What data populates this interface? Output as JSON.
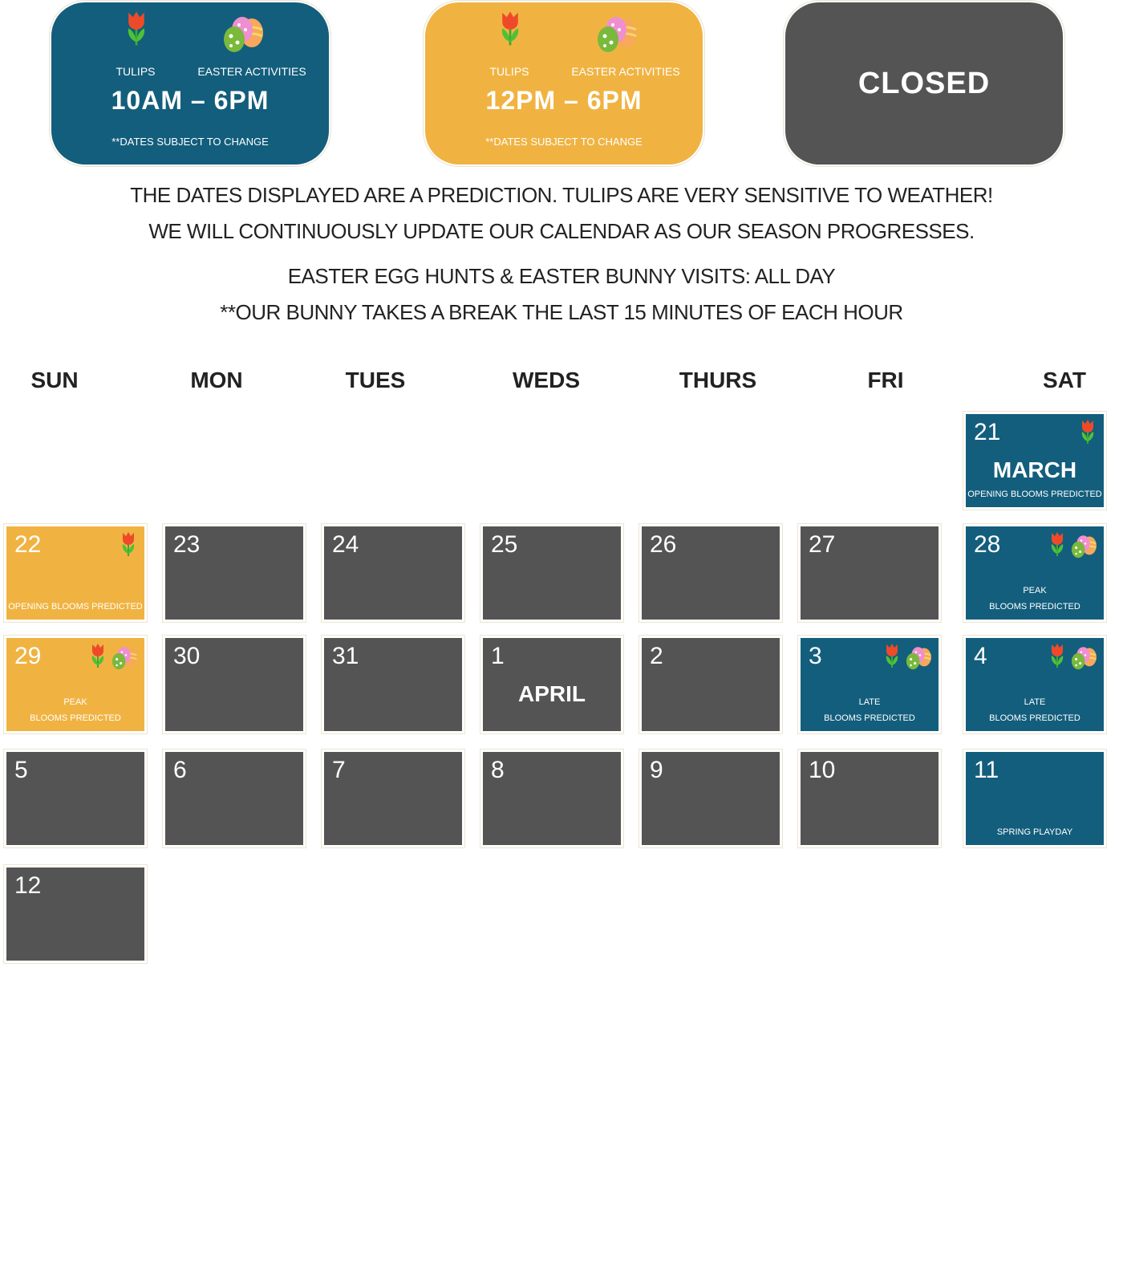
{
  "legend": [
    {
      "label_1": "TULIPS",
      "label_2": "EASTER ACTIVITIES",
      "hours": "10AM – 6PM",
      "note": "**DATES SUBJECT TO CHANGE",
      "color": "#135e7c"
    },
    {
      "label_1": "TULIPS",
      "label_2": "EASTER ACTIVITIES",
      "hours": "12PM – 6PM",
      "note": "**DATES SUBJECT TO CHANGE",
      "color": "#f0b342"
    },
    {
      "hours": "CLOSED",
      "color": "#545454"
    }
  ],
  "notices": [
    "THE DATES DISPLAYED ARE A PREDICTION. TULIPS ARE VERY SENSITIVE TO WEATHER!",
    "WE WILL CONTINUOUSLY UPDATE OUR CALENDAR AS OUR SEASON PROGRESSES.",
    "EASTER EGG HUNTS & EASTER BUNNY VISITS: ALL DAY",
    "**OUR BUNNY TAKES A BREAK THE LAST 15 MINUTES OF EACH HOUR"
  ],
  "weekdays": [
    "SUN",
    "MON",
    "TUES",
    "WEDS",
    "THURS",
    "FRI",
    "SAT"
  ],
  "weeks": [
    [
      null,
      null,
      null,
      null,
      null,
      null,
      {
        "day": 21,
        "month": "MARCH",
        "note": [
          "OPENING BLOOMS PREDICTED"
        ],
        "color": "#135e7c",
        "tulip": true
      }
    ],
    [
      {
        "day": 22,
        "note": [
          "OPENING BLOOMS PREDICTED"
        ],
        "color": "#f0b342",
        "tulip": true
      },
      {
        "day": 23,
        "color": "#545454"
      },
      {
        "day": 24,
        "color": "#545454"
      },
      {
        "day": 25,
        "color": "#545454"
      },
      {
        "day": 26,
        "color": "#545454"
      },
      {
        "day": 27,
        "color": "#545454"
      },
      {
        "day": 28,
        "note": [
          "PEAK",
          "BLOOMS PREDICTED"
        ],
        "color": "#135e7c",
        "tulip": true,
        "eggs": true
      }
    ],
    [
      {
        "day": 29,
        "note": [
          "PEAK",
          "BLOOMS PREDICTED"
        ],
        "color": "#f0b342",
        "tulip": true,
        "eggs": true
      },
      {
        "day": 30,
        "color": "#545454"
      },
      {
        "day": 31,
        "color": "#545454"
      },
      {
        "day": 1,
        "month": "APRIL",
        "color": "#545454"
      },
      {
        "day": 2,
        "color": "#545454"
      },
      {
        "day": 3,
        "note": [
          "LATE",
          "BLOOMS PREDICTED"
        ],
        "color": "#135e7c",
        "tulip": true,
        "eggs": true
      },
      {
        "day": 4,
        "note": [
          "LATE",
          "BLOOMS PREDICTED"
        ],
        "color": "#135e7c",
        "tulip": true,
        "eggs": true
      }
    ],
    [
      {
        "day": 5,
        "color": "#545454"
      },
      {
        "day": 6,
        "color": "#545454"
      },
      {
        "day": 7,
        "color": "#545454"
      },
      {
        "day": 8,
        "color": "#545454"
      },
      {
        "day": 9,
        "color": "#545454"
      },
      {
        "day": 10,
        "color": "#545454"
      },
      {
        "day": 11,
        "note": [
          "SPRING PLAYDAY"
        ],
        "color": "#135e7c"
      }
    ],
    [
      {
        "day": 12,
        "color": "#545454"
      }
    ]
  ]
}
